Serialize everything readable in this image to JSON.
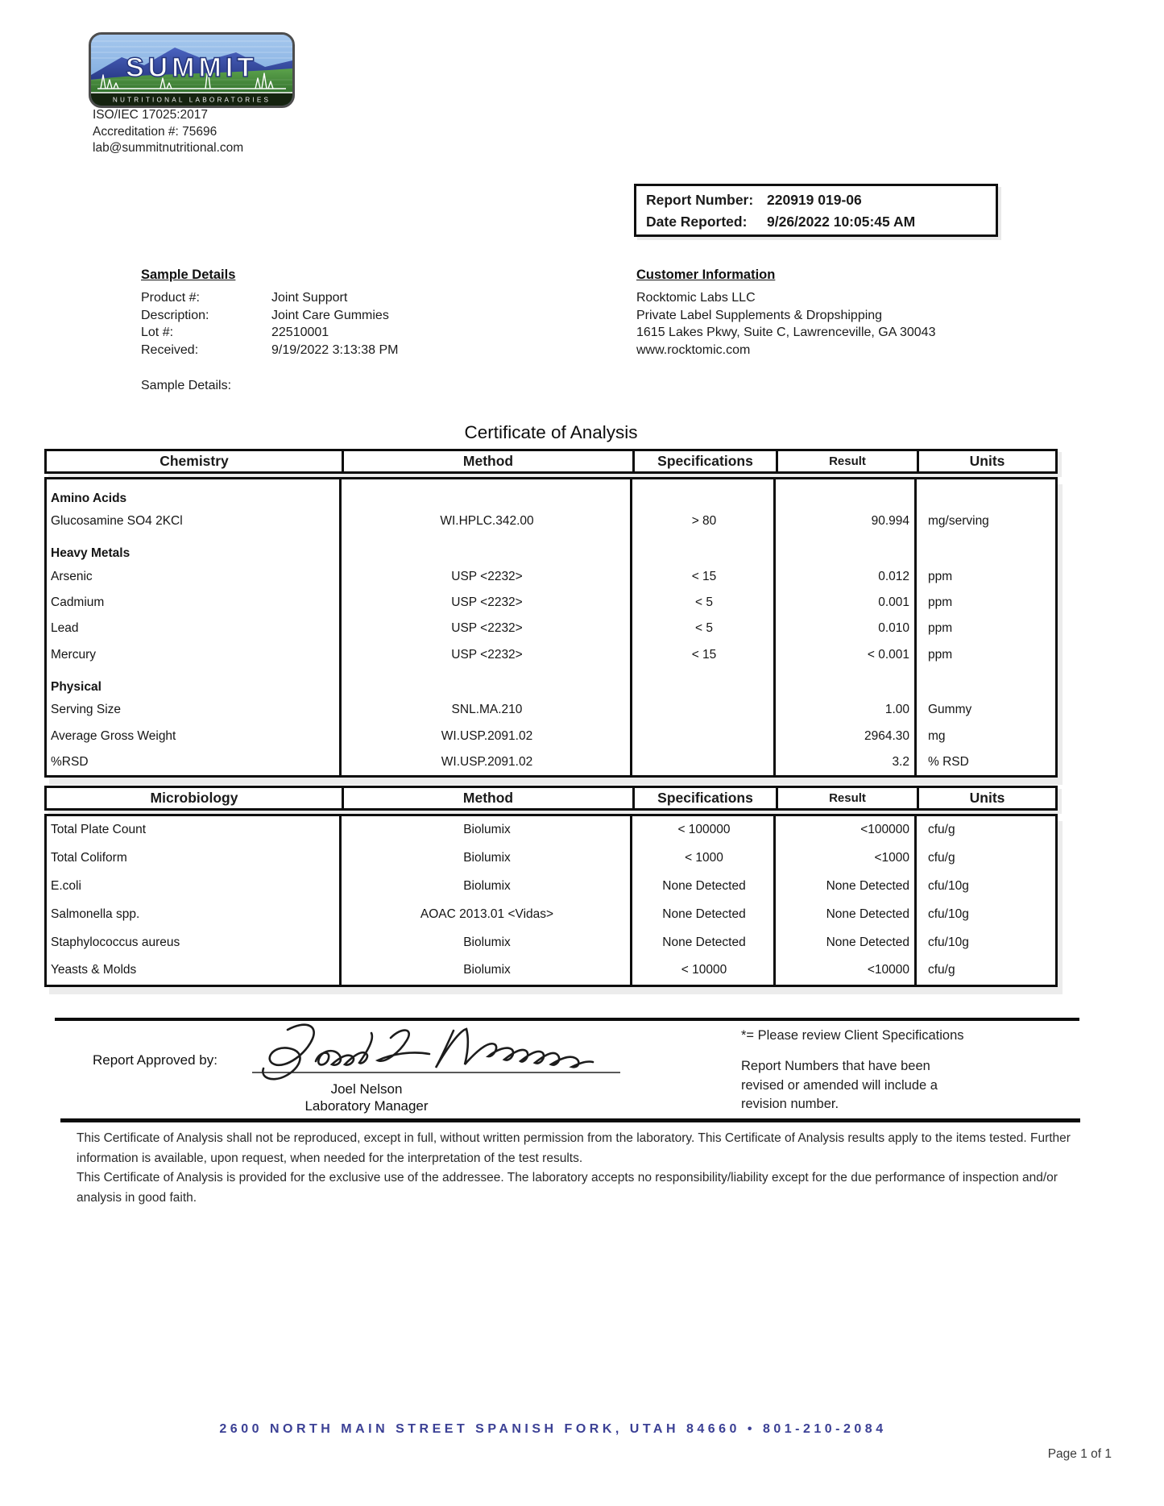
{
  "colors": {
    "footer_navy": "#3b4095",
    "table_border": "#0d0d0d",
    "shadow_gray": "#ececec",
    "logo_sky": "#8db8e8",
    "logo_mountain": "#2c3f93",
    "logo_green": "#3f8a33"
  },
  "header": {
    "logo_title": "SUMMIT",
    "logo_subtitle": "NUTRITIONAL LABORATORIES",
    "iso": "ISO/IEC 17025:2017",
    "accreditation": "Accreditation #: 75696",
    "email": "lab@summitnutritional.com"
  },
  "report_box": {
    "report_number_label": "Report Number:",
    "report_number": "220919 019-06",
    "date_reported_label": "Date Reported:",
    "date_reported": "9/26/2022 10:05:45 AM"
  },
  "sample_details": {
    "heading": "Sample Details",
    "rows": [
      {
        "label": "Product #:",
        "value": "Joint Support"
      },
      {
        "label": "Description:",
        "value": "Joint Care Gummies"
      },
      {
        "label": "Lot #:",
        "value": "22510001"
      },
      {
        "label": "Received:",
        "value": "9/19/2022 3:13:38 PM"
      }
    ],
    "extra_label": "Sample Details:"
  },
  "customer": {
    "heading": "Customer Information",
    "lines": [
      "Rocktomic Labs LLC",
      "Private Label Supplements & Dropshipping",
      "1615 Lakes Pkwy, Suite C, Lawrenceville, GA 30043",
      "www.rocktomic.com"
    ]
  },
  "title": "Certificate of Analysis",
  "chemistry_table": {
    "headers": [
      "Chemistry",
      "Method",
      "Specifications",
      "Result",
      "Units"
    ],
    "rows": [
      {
        "type": "section",
        "name": "Amino Acids",
        "method": "",
        "spec": "",
        "result": "",
        "units": ""
      },
      {
        "type": "data",
        "name": "Glucosamine SO4 2KCl",
        "method": "WI.HPLC.342.00",
        "spec": "> 80",
        "result": "90.994",
        "units": "mg/serving"
      },
      {
        "type": "section",
        "name": "Heavy Metals",
        "method": "",
        "spec": "",
        "result": "",
        "units": ""
      },
      {
        "type": "data",
        "name": "Arsenic",
        "method": "USP <2232>",
        "spec": "< 15",
        "result": "0.012",
        "units": "ppm"
      },
      {
        "type": "data",
        "name": "Cadmium",
        "method": "USP <2232>",
        "spec": "< 5",
        "result": "0.001",
        "units": "ppm"
      },
      {
        "type": "data",
        "name": "Lead",
        "method": "USP <2232>",
        "spec": "< 5",
        "result": "0.010",
        "units": "ppm"
      },
      {
        "type": "data",
        "name": "Mercury",
        "method": "USP <2232>",
        "spec": "< 15",
        "result": "< 0.001",
        "units": "ppm"
      },
      {
        "type": "section",
        "name": "Physical",
        "method": "",
        "spec": "",
        "result": "",
        "units": ""
      },
      {
        "type": "data",
        "name": "Serving Size",
        "method": "SNL.MA.210",
        "spec": "",
        "result": "1.00",
        "units": "Gummy"
      },
      {
        "type": "data",
        "name": "Average Gross Weight",
        "method": "WI.USP.2091.02",
        "spec": "",
        "result": "2964.30",
        "units": "mg"
      },
      {
        "type": "data",
        "name": "%RSD",
        "method": "WI.USP.2091.02",
        "spec": "",
        "result": "3.2",
        "units": "% RSD"
      }
    ]
  },
  "microbiology_table": {
    "headers": [
      "Microbiology",
      "Method",
      "Specifications",
      "Result",
      "Units"
    ],
    "rows": [
      {
        "type": "data",
        "name": "Total Plate Count",
        "method": "Biolumix",
        "spec": "< 100000",
        "result": "<100000",
        "units": "cfu/g"
      },
      {
        "type": "data",
        "name": "Total Coliform",
        "method": "Biolumix",
        "spec": "< 1000",
        "result": "<1000",
        "units": "cfu/g"
      },
      {
        "type": "data",
        "name": "E.coli",
        "method": "Biolumix",
        "spec": "None Detected",
        "result": "None Detected",
        "units": "cfu/10g"
      },
      {
        "type": "data",
        "name": "Salmonella spp.",
        "method": "AOAC 2013.01 <Vidas>",
        "spec": "None Detected",
        "result": "None Detected",
        "units": "cfu/10g"
      },
      {
        "type": "data",
        "name": "Staphylococcus aureus",
        "method": "Biolumix",
        "spec": "None Detected",
        "result": "None Detected",
        "units": "cfu/10g"
      },
      {
        "type": "data",
        "name": "Yeasts & Molds",
        "method": "Biolumix",
        "spec": "< 10000",
        "result": "<10000",
        "units": "cfu/g"
      }
    ]
  },
  "approval": {
    "label": "Report Approved by:",
    "signer_name": "Joel Nelson",
    "signer_title": "Laboratory Manager"
  },
  "notes": {
    "client_spec_note": "*= Please review Client Specifications",
    "revision_note": "Report Numbers that have been revised or amended will include a revision number."
  },
  "disclaimer": {
    "p1": "This Certificate of Analysis shall not be reproduced, except in full, without written permission from the laboratory. This Certificate of Analysis results apply to the items tested. Further information is available, upon request, when needed for the interpretation of the test results.",
    "p2": "This Certificate of Analysis is provided for the exclusive use of the addressee. The laboratory accepts no responsibility/liability except for the due performance of inspection and/or analysis in good faith."
  },
  "footer": {
    "address": "2600 North Main Street Spanish Fork, Utah 84660 • 801-210-2084",
    "page": "Page 1 of 1"
  }
}
